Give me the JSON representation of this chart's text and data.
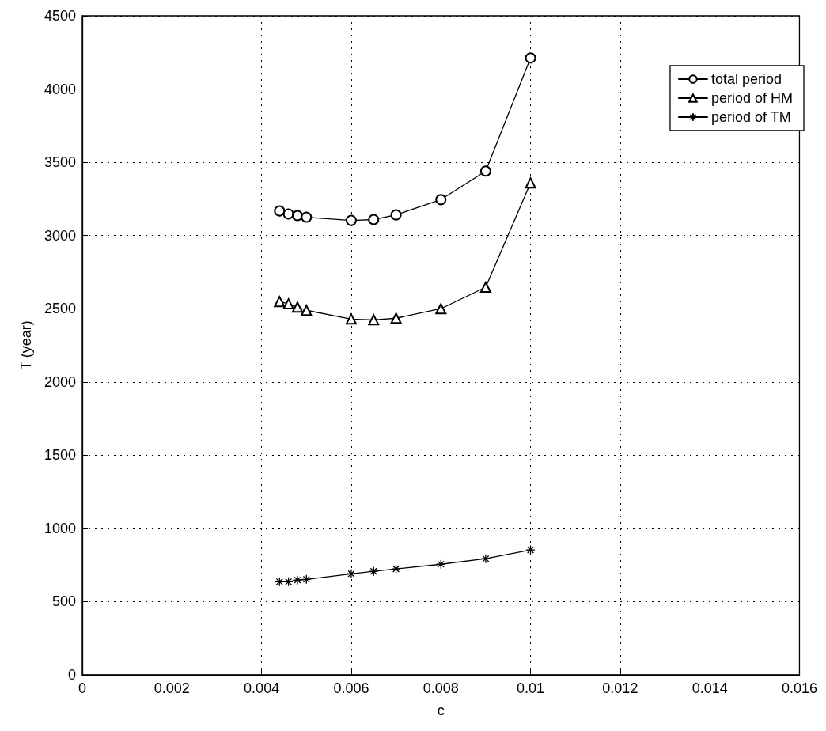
{
  "chart_data": {
    "type": "line",
    "xlabel": "c",
    "ylabel": "T (year)",
    "xlim": [
      0,
      0.016
    ],
    "xticks": [
      0,
      0.002,
      0.004,
      0.006,
      0.008,
      0.01,
      0.012,
      0.014,
      0.016
    ],
    "ylim": [
      0,
      4500
    ],
    "yticks": [
      0,
      500,
      1000,
      1500,
      2000,
      2500,
      3000,
      3500,
      4000,
      4500
    ],
    "grid": true,
    "legend": "top right",
    "line_style": "solid",
    "x": [
      0.0044,
      0.0046,
      0.0048,
      0.005,
      0.006,
      0.0065,
      0.007,
      0.008,
      0.009,
      0.01
    ],
    "series": [
      {
        "name": "total period",
        "color": "#000000",
        "marker": "circle",
        "values": [
          3168,
          3147,
          3136,
          3125,
          3103,
          3109,
          3141,
          3245,
          3440,
          4212
        ]
      },
      {
        "name": "period of HM",
        "color": "#000000",
        "marker": "triangle",
        "values": [
          2549,
          2533,
          2511,
          2489,
          2429,
          2424,
          2435,
          2500,
          2647,
          3359
        ]
      },
      {
        "name": "period of TM",
        "color": "#000000",
        "marker": "cross",
        "values": [
          636,
          636,
          647,
          652,
          690,
          707,
          723,
          755,
          793,
          853
        ]
      }
    ]
  }
}
